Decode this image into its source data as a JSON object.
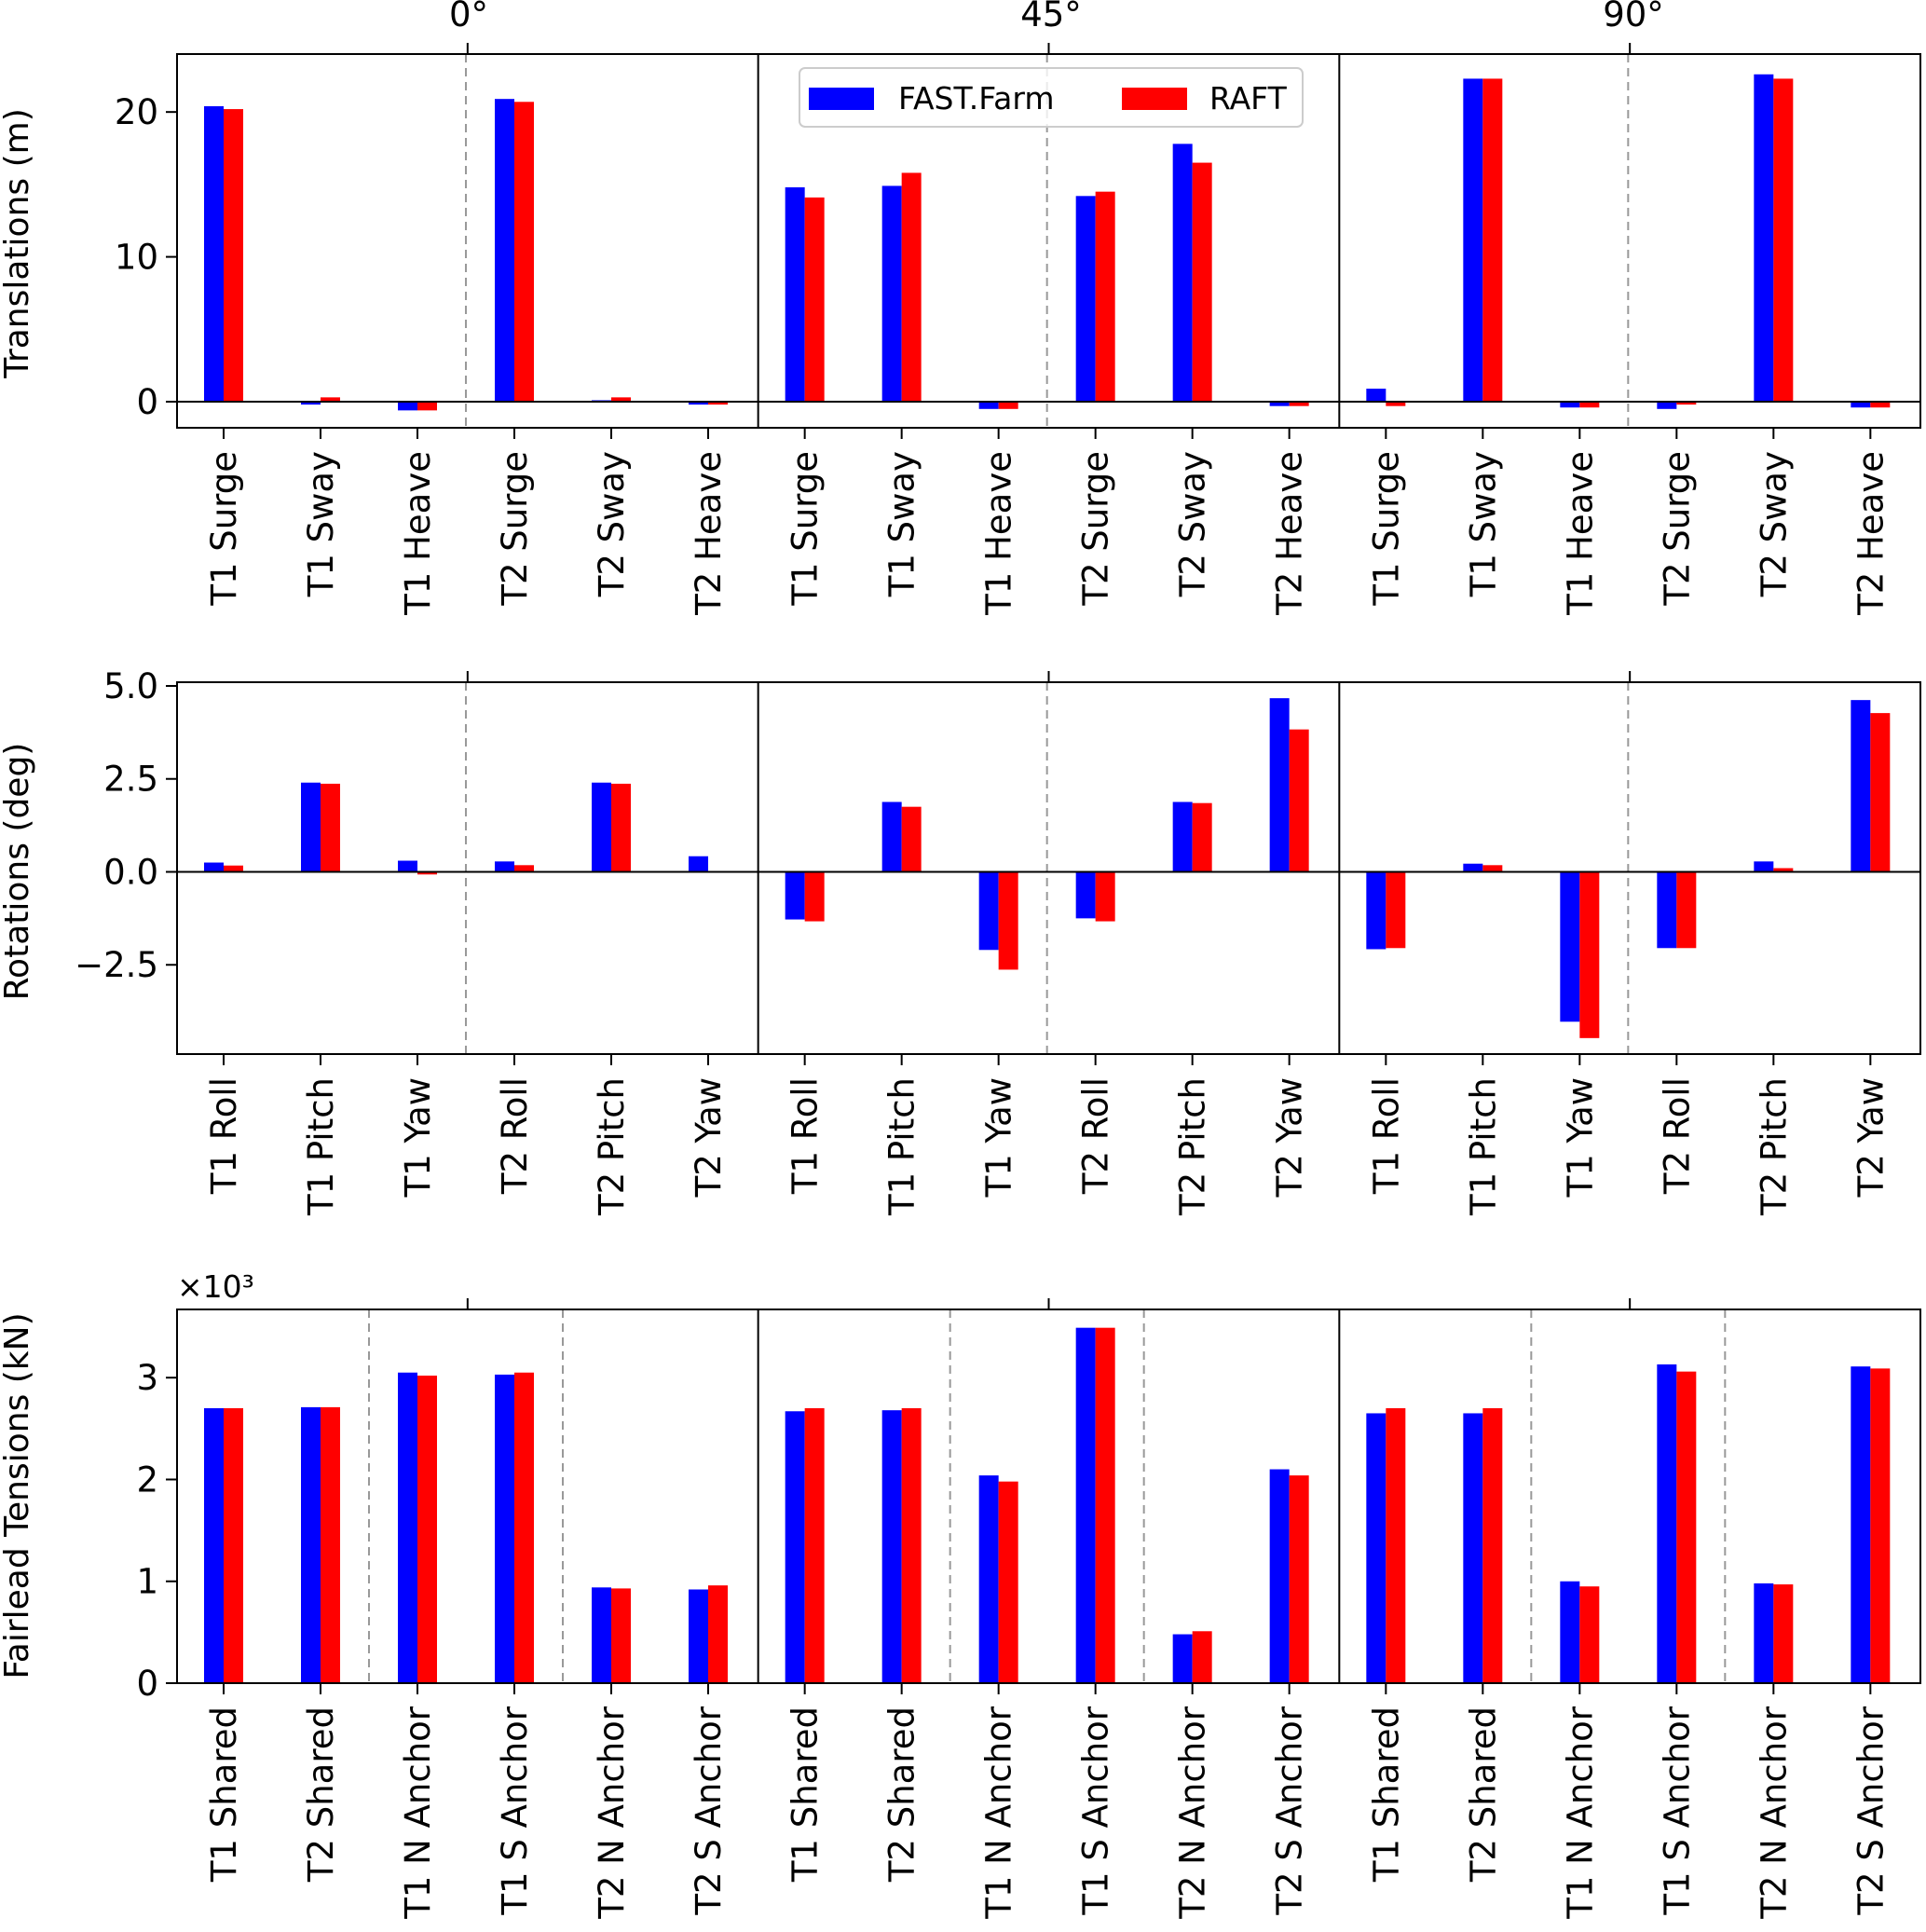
{
  "colors": {
    "fastfarm": "#0000ff",
    "raft": "#ff0000",
    "axis": "#000000",
    "divider": "#999999"
  },
  "legend": {
    "items": [
      "FAST.Farm",
      "RAFT"
    ],
    "placement": "top-center of upper plot"
  },
  "headings": [
    "0°",
    "45°",
    "90°"
  ],
  "chart_data": [
    {
      "type": "bar",
      "panel": "translations",
      "ylabel": "Translations (m)",
      "ylim": [
        -1.8,
        24
      ],
      "yticks": [
        0,
        10,
        20
      ],
      "ytick_labels": [
        "0",
        "10",
        "20"
      ],
      "categories": [
        "T1 Surge",
        "T1 Sway",
        "T1 Heave",
        "T2 Surge",
        "T2 Sway",
        "T2 Heave"
      ],
      "sub_divider_after": [
        3
      ],
      "groups": [
        {
          "heading": "0°",
          "series": [
            {
              "name": "FAST.Farm",
              "values": [
                20.4,
                -0.2,
                -0.6,
                20.9,
                0.1,
                -0.2
              ]
            },
            {
              "name": "RAFT",
              "values": [
                20.2,
                0.3,
                -0.6,
                20.7,
                0.3,
                -0.2
              ]
            }
          ]
        },
        {
          "heading": "45°",
          "series": [
            {
              "name": "FAST.Farm",
              "values": [
                14.8,
                14.9,
                -0.5,
                14.2,
                17.8,
                -0.3
              ]
            },
            {
              "name": "RAFT",
              "values": [
                14.1,
                15.8,
                -0.5,
                14.5,
                16.5,
                -0.3
              ]
            }
          ]
        },
        {
          "heading": "90°",
          "series": [
            {
              "name": "FAST.Farm",
              "values": [
                0.9,
                22.3,
                -0.4,
                -0.5,
                22.6,
                -0.4
              ]
            },
            {
              "name": "RAFT",
              "values": [
                -0.3,
                22.3,
                -0.4,
                -0.2,
                22.3,
                -0.4
              ]
            }
          ]
        }
      ]
    },
    {
      "type": "bar",
      "panel": "rotations",
      "ylabel": "Rotations (deg)",
      "ylim": [
        -4.9,
        5.1
      ],
      "yticks": [
        -2.5,
        0,
        2.5,
        5
      ],
      "ytick_labels": [
        "−2.5",
        "0.0",
        "2.5",
        "5.0"
      ],
      "categories": [
        "T1 Roll",
        "T1 Pitch",
        "T1 Yaw",
        "T2 Roll",
        "T2 Pitch",
        "T2 Yaw"
      ],
      "sub_divider_after": [
        3
      ],
      "groups": [
        {
          "heading": "0°",
          "series": [
            {
              "name": "FAST.Farm",
              "values": [
                0.25,
                2.4,
                0.3,
                0.28,
                2.4,
                0.42
              ]
            },
            {
              "name": "RAFT",
              "values": [
                0.17,
                2.37,
                -0.07,
                0.18,
                2.37,
                0.0
              ]
            }
          ]
        },
        {
          "heading": "45°",
          "series": [
            {
              "name": "FAST.Farm",
              "values": [
                -1.28,
                1.88,
                -2.1,
                -1.25,
                1.88,
                4.67
              ]
            },
            {
              "name": "RAFT",
              "values": [
                -1.33,
                1.75,
                -2.63,
                -1.33,
                1.85,
                3.83
              ]
            }
          ]
        },
        {
          "heading": "90°",
          "series": [
            {
              "name": "FAST.Farm",
              "values": [
                -2.08,
                0.22,
                -4.03,
                -2.05,
                0.28,
                4.62
              ]
            },
            {
              "name": "RAFT",
              "values": [
                -2.05,
                0.18,
                -4.47,
                -2.05,
                0.1,
                4.27
              ]
            }
          ]
        }
      ]
    },
    {
      "type": "bar",
      "panel": "tensions",
      "ylabel": "Fairlead Tensions (kN)",
      "scale_label": "×10³",
      "ylim": [
        0,
        3.67
      ],
      "yticks": [
        0,
        1,
        2,
        3
      ],
      "ytick_labels": [
        "0",
        "1",
        "2",
        "3"
      ],
      "categories": [
        "T1 Shared",
        "T2 Shared",
        "T1 N Anchor",
        "T1 S Anchor",
        "T2 N Anchor",
        "T2 S Anchor"
      ],
      "sub_divider_after": [
        2,
        4
      ],
      "groups": [
        {
          "heading": "0°",
          "series": [
            {
              "name": "FAST.Farm",
              "values": [
                2.7,
                2.71,
                3.05,
                3.03,
                0.94,
                0.92
              ]
            },
            {
              "name": "RAFT",
              "values": [
                2.7,
                2.71,
                3.02,
                3.05,
                0.93,
                0.96
              ]
            }
          ]
        },
        {
          "heading": "45°",
          "series": [
            {
              "name": "FAST.Farm",
              "values": [
                2.67,
                2.68,
                2.04,
                3.49,
                0.48,
                2.1
              ]
            },
            {
              "name": "RAFT",
              "values": [
                2.7,
                2.7,
                1.98,
                3.49,
                0.51,
                2.04
              ]
            }
          ]
        },
        {
          "heading": "90°",
          "series": [
            {
              "name": "FAST.Farm",
              "values": [
                2.65,
                2.65,
                1.0,
                3.13,
                0.98,
                3.11
              ]
            },
            {
              "name": "RAFT",
              "values": [
                2.7,
                2.7,
                0.95,
                3.06,
                0.97,
                3.09
              ]
            }
          ]
        }
      ]
    }
  ]
}
